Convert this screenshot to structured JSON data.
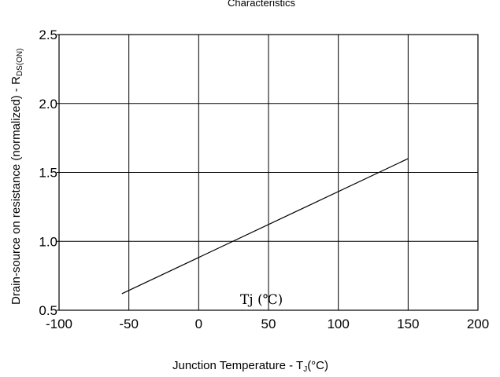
{
  "chart_data": {
    "type": "line",
    "title": "Characteristics",
    "xlabel_main": "Junction Temperature - T",
    "xlabel_sub": "J",
    "xlabel_tail": "(°C)",
    "ylabel_main": "Drain-source on resistance (normalized) - R",
    "ylabel_sub": "DS(ON)",
    "annotation": "Tj (℃)",
    "xlim": [
      -100,
      200
    ],
    "ylim": [
      0.5,
      2.5
    ],
    "x_ticks": [
      -100,
      -50,
      0,
      50,
      100,
      150,
      200
    ],
    "x_tick_labels": [
      "-100",
      "-50",
      "0",
      "50",
      "100",
      "150",
      "200"
    ],
    "y_ticks": [
      0.5,
      1.0,
      1.5,
      2.0,
      2.5
    ],
    "y_tick_labels": [
      "0.5",
      "1.0",
      "1.5",
      "2.0",
      "2.5"
    ],
    "grid": true,
    "series": [
      {
        "x": [
          -55,
          150
        ],
        "y": [
          0.62,
          1.6
        ]
      }
    ]
  }
}
